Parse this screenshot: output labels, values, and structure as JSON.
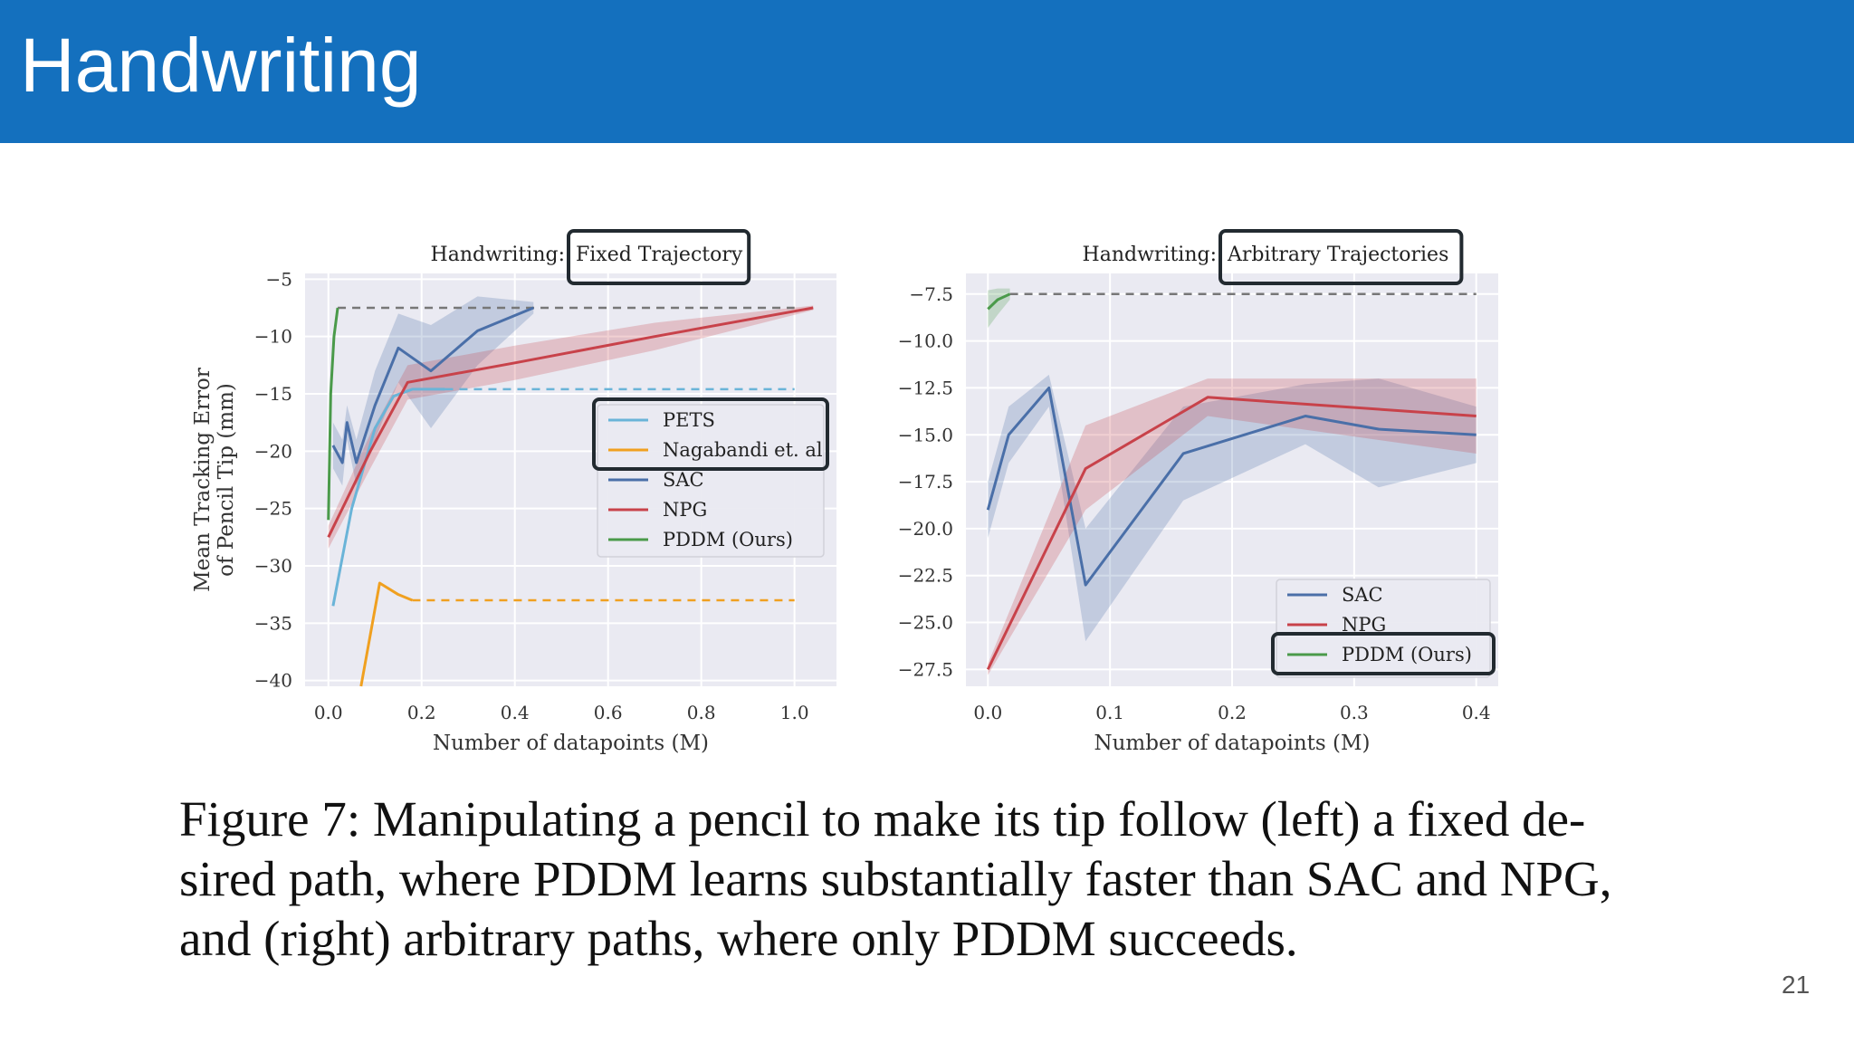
{
  "slide": {
    "title": "Handwriting",
    "page_number": "21",
    "caption": {
      "label": "Figure 7:",
      "text": "Manipulating a pencil to make its tip follow (left) a fixed de-\nsired path, where PDDM learns substantially faster than SAC and NPG,\nand (right) arbitrary paths, where only PDDM succeeds."
    }
  },
  "colors": {
    "header": "#1470be",
    "PETS": "#6ab4d8",
    "Nagabandi et. al": "#f0a020",
    "SAC": "#4a6fa8",
    "NPG": "#c8424a",
    "PDDM (Ours)": "#4a9a4a",
    "highlight_box": "#222a30"
  },
  "chart_data": [
    {
      "type": "line",
      "title": "Handwriting: Fixed Trajectory",
      "title_prefix": "Handwriting:",
      "title_highlight": "Fixed Trajectory",
      "xlabel": "Number of datapoints (M)",
      "ylabel": "Mean Tracking Error of Pencil Tip (mm)",
      "xlim": [
        -0.05,
        1.09
      ],
      "ylim": [
        -40.5,
        -4.5
      ],
      "xticks": [
        0.0,
        0.2,
        0.4,
        0.6,
        0.8,
        1.0
      ],
      "yticks": [
        -5,
        -10,
        -15,
        -20,
        -25,
        -30,
        -35,
        -40
      ],
      "grid": true,
      "legend_position": "center-right",
      "legend_highlighted": [
        "PETS",
        "Nagabandi et. al"
      ],
      "series": [
        {
          "name": "PETS",
          "x": [
            0.01,
            0.05,
            0.1,
            0.14,
            0.18,
            0.25
          ],
          "y": [
            -33.5,
            -25,
            -18,
            -15.2,
            -14.6,
            -14.6
          ],
          "asymptote": -14.6,
          "asymptote_to": 1.0
        },
        {
          "name": "Nagabandi et. al",
          "x": [
            0.07,
            0.11,
            0.15,
            0.18
          ],
          "y": [
            -40.5,
            -31.5,
            -32.5,
            -33
          ],
          "asymptote": -33,
          "asymptote_to": 1.0
        },
        {
          "name": "SAC",
          "x": [
            0.01,
            0.03,
            0.04,
            0.06,
            0.1,
            0.15,
            0.22,
            0.32,
            0.44
          ],
          "y": [
            -19.5,
            -21,
            -17.5,
            -21,
            -16,
            -11,
            -13,
            -9.5,
            -7.5
          ],
          "band": [
            [
              -17.5,
              -21.5
            ],
            [
              -19,
              -23
            ],
            [
              -16,
              -19
            ],
            [
              -19,
              -23
            ],
            [
              -13,
              -19
            ],
            [
              -8,
              -14
            ],
            [
              -9,
              -18
            ],
            [
              -6.5,
              -12.5
            ],
            [
              -7,
              -8
            ]
          ]
        },
        {
          "name": "NPG",
          "x": [
            0.0,
            0.09,
            0.17,
            0.4,
            0.7,
            1.04
          ],
          "y": [
            -27.5,
            -20,
            -14,
            -12.3,
            -10,
            -7.5
          ],
          "band": [
            [
              -26.5,
              -28.5
            ],
            [
              -18.5,
              -21.5
            ],
            [
              -12.5,
              -15.5
            ],
            [
              -10.8,
              -13.8
            ],
            [
              -8.8,
              -11.2
            ],
            [
              -7.3,
              -7.7
            ]
          ]
        },
        {
          "name": "PDDM (Ours)",
          "x": [
            0.0,
            0.005,
            0.012,
            0.02
          ],
          "y": [
            -26,
            -15,
            -10,
            -7.5
          ],
          "asymptote": -7.5,
          "asymptote_to": 1.0
        }
      ]
    },
    {
      "type": "line",
      "title": "Handwriting: Arbitrary Trajectories",
      "title_prefix": "Handwriting:",
      "title_highlight": "Arbitrary Trajectories",
      "xlabel": "Number of datapoints (M)",
      "ylabel": "",
      "xlim": [
        -0.018,
        0.418
      ],
      "ylim": [
        -28.4,
        -6.4
      ],
      "xticks": [
        0.0,
        0.1,
        0.2,
        0.3,
        0.4
      ],
      "xtick_labels": [
        "0.0",
        "0.1",
        "0.2",
        "0.3",
        "0.4"
      ],
      "yticks": [
        -7.5,
        -10.0,
        -12.5,
        -15.0,
        -17.5,
        -20.0,
        -22.5,
        -25.0,
        -27.5
      ],
      "ytick_labels": [
        "−7.5",
        "−10.0",
        "−12.5",
        "−15.0",
        "−17.5",
        "−20.0",
        "−22.5",
        "−25.0",
        "−27.5"
      ],
      "grid": true,
      "legend_position": "lower-right",
      "legend_highlighted": [
        "PDDM (Ours)"
      ],
      "series": [
        {
          "name": "SAC",
          "x": [
            0.0,
            0.017,
            0.05,
            0.08,
            0.16,
            0.26,
            0.32,
            0.4
          ],
          "y": [
            -19,
            -15,
            -12.5,
            -23,
            -16,
            -14,
            -14.7,
            -15
          ],
          "band": [
            [
              -17.5,
              -20.5
            ],
            [
              -13.5,
              -16.5
            ],
            [
              -11.8,
              -13.5
            ],
            [
              -20,
              -26
            ],
            [
              -13.5,
              -18.5
            ],
            [
              -12.3,
              -15.5
            ],
            [
              -12,
              -17.8
            ],
            [
              -13.5,
              -16.5
            ]
          ]
        },
        {
          "name": "NPG",
          "x": [
            0.0,
            0.08,
            0.18,
            0.4
          ],
          "y": [
            -27.5,
            -16.8,
            -13,
            -14
          ],
          "band": [
            [
              -27.2,
              -27.8
            ],
            [
              -14.5,
              -19
            ],
            [
              -12,
              -14
            ],
            [
              -12,
              -16
            ]
          ]
        },
        {
          "name": "PDDM (Ours)",
          "x": [
            0.0,
            0.008,
            0.018
          ],
          "y": [
            -8.3,
            -7.8,
            -7.5
          ],
          "band": [
            [
              -7.3,
              -9.3
            ],
            [
              -7.2,
              -8.6
            ],
            [
              -7.2,
              -7.8
            ]
          ],
          "asymptote": -7.5,
          "asymptote_to": 0.4
        }
      ]
    }
  ]
}
